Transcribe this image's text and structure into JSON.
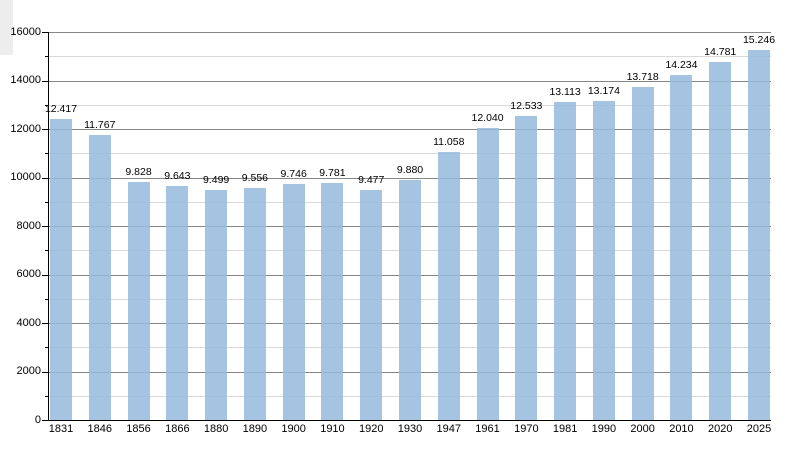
{
  "chart_data": {
    "type": "bar",
    "title": "",
    "xlabel": "",
    "ylabel": "",
    "categories": [
      "1831",
      "1846",
      "1856",
      "1866",
      "1880",
      "1890",
      "1900",
      "1910",
      "1920",
      "1930",
      "1947",
      "1961",
      "1970",
      "1981",
      "1990",
      "2000",
      "2010",
      "2020",
      "2025"
    ],
    "values": [
      12417,
      11767,
      9828,
      9643,
      9499,
      9556,
      9746,
      9781,
      9477,
      9880,
      11058,
      12040,
      12533,
      13113,
      13174,
      13718,
      14234,
      14781,
      15246
    ],
    "value_labels": [
      "12.417",
      "11.767",
      "9.828",
      "9.643",
      "9.499",
      "9.556",
      "9.746",
      "9.781",
      "9.477",
      "9.880",
      "11.058",
      "12.040",
      "12.533",
      "13.113",
      "13.174",
      "13.718",
      "14.234",
      "14.781",
      "15.246"
    ],
    "ylim": [
      0,
      16000
    ],
    "y_major_tick_values": [
      0,
      2000,
      4000,
      6000,
      8000,
      10000,
      12000,
      14000,
      16000
    ],
    "y_major_tick_labels": [
      "0",
      "2000",
      "4000",
      "6000",
      "8000",
      "10000",
      "12000",
      "14000",
      "16000"
    ],
    "y_minor_step": 1000,
    "grid": "major-and-minor",
    "legend_position": "none",
    "colors": {
      "bar_fill": "#a5c4e2",
      "bar_fill_rgba": "rgba(149,186,221,0.85)",
      "major_grid": "#868686",
      "minor_grid": "#d9d9d9",
      "axis": "#000000",
      "text": "#000000",
      "page_artifact": "#ededed"
    }
  }
}
